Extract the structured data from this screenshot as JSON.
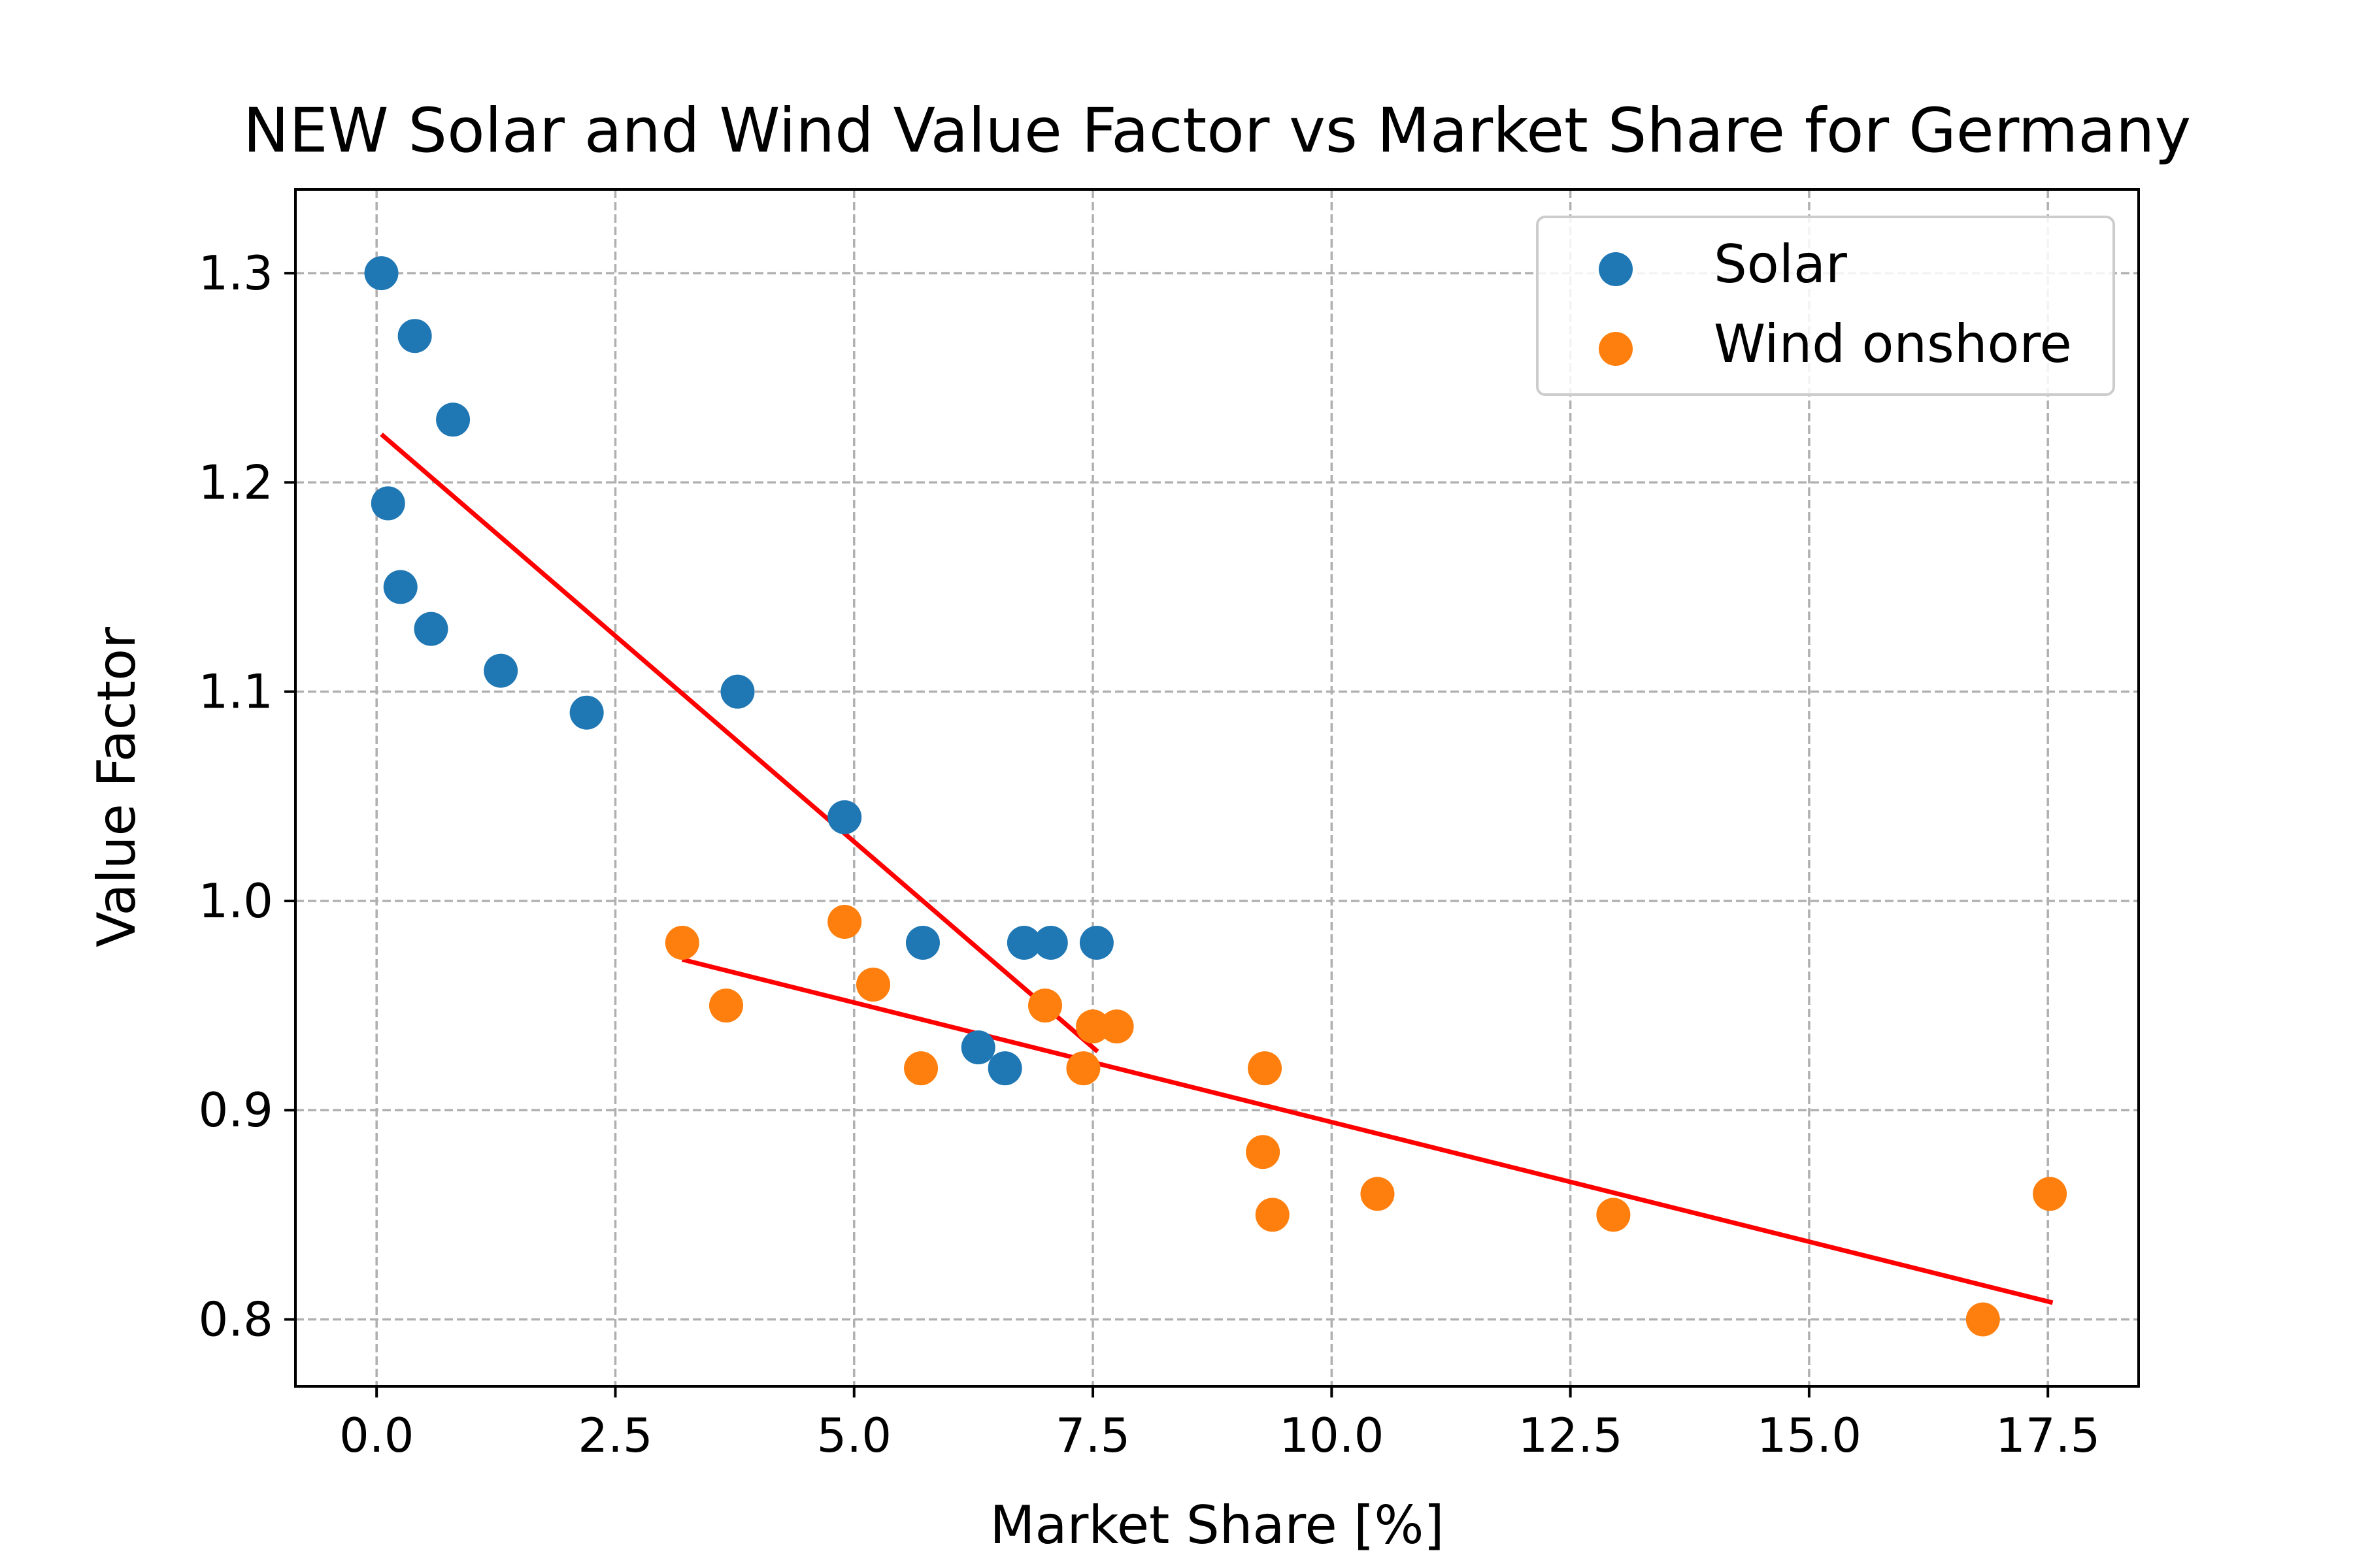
{
  "chart_data": {
    "type": "scatter",
    "title": "NEW Solar and Wind Value Factor vs Market Share for Germany",
    "xlabel": "Market Share [%]",
    "ylabel": "Value Factor",
    "xlim": [
      -0.85,
      18.45
    ],
    "ylim": [
      0.768,
      1.34
    ],
    "xticks": [
      0.0,
      2.5,
      5.0,
      7.5,
      10.0,
      12.5,
      15.0,
      17.5
    ],
    "xtick_labels": [
      "0.0",
      "2.5",
      "5.0",
      "7.5",
      "10.0",
      "12.5",
      "15.0",
      "17.5"
    ],
    "yticks": [
      0.8,
      0.9,
      1.0,
      1.1,
      1.2,
      1.3
    ],
    "ytick_labels": [
      "0.8",
      "0.9",
      "1.0",
      "1.1",
      "1.2",
      "1.3"
    ],
    "grid": true,
    "legend_position": "top-right",
    "series": [
      {
        "name": "Solar",
        "color": "#1f77b4",
        "points": [
          [
            0.05,
            1.3
          ],
          [
            0.4,
            1.27
          ],
          [
            0.8,
            1.23
          ],
          [
            0.12,
            1.19
          ],
          [
            0.25,
            1.15
          ],
          [
            0.57,
            1.13
          ],
          [
            1.3,
            1.11
          ],
          [
            2.2,
            1.09
          ],
          [
            3.78,
            1.1
          ],
          [
            4.9,
            1.04
          ],
          [
            5.72,
            0.98
          ],
          [
            6.78,
            0.98
          ],
          [
            7.06,
            0.98
          ],
          [
            7.54,
            0.98
          ],
          [
            6.3,
            0.93
          ],
          [
            6.58,
            0.92
          ]
        ]
      },
      {
        "name": "Wind onshore",
        "color": "#ff7f0e",
        "points": [
          [
            3.2,
            0.98
          ],
          [
            3.66,
            0.95
          ],
          [
            4.9,
            0.99
          ],
          [
            5.2,
            0.96
          ],
          [
            5.7,
            0.92
          ],
          [
            7.0,
            0.95
          ],
          [
            7.4,
            0.92
          ],
          [
            7.5,
            0.94
          ],
          [
            7.75,
            0.94
          ],
          [
            9.3,
            0.92
          ],
          [
            9.28,
            0.88
          ],
          [
            9.38,
            0.85
          ],
          [
            10.48,
            0.86
          ],
          [
            12.95,
            0.85
          ],
          [
            16.82,
            0.8
          ],
          [
            17.52,
            0.86
          ]
        ]
      }
    ],
    "trendlines": [
      {
        "series": "Solar",
        "color": "#ff0000",
        "x": [
          0.05,
          7.55
        ],
        "y": [
          1.223,
          0.928
        ]
      },
      {
        "series": "Wind onshore",
        "color": "#ff0000",
        "x": [
          3.2,
          17.55
        ],
        "y": [
          0.972,
          0.808
        ]
      }
    ]
  }
}
